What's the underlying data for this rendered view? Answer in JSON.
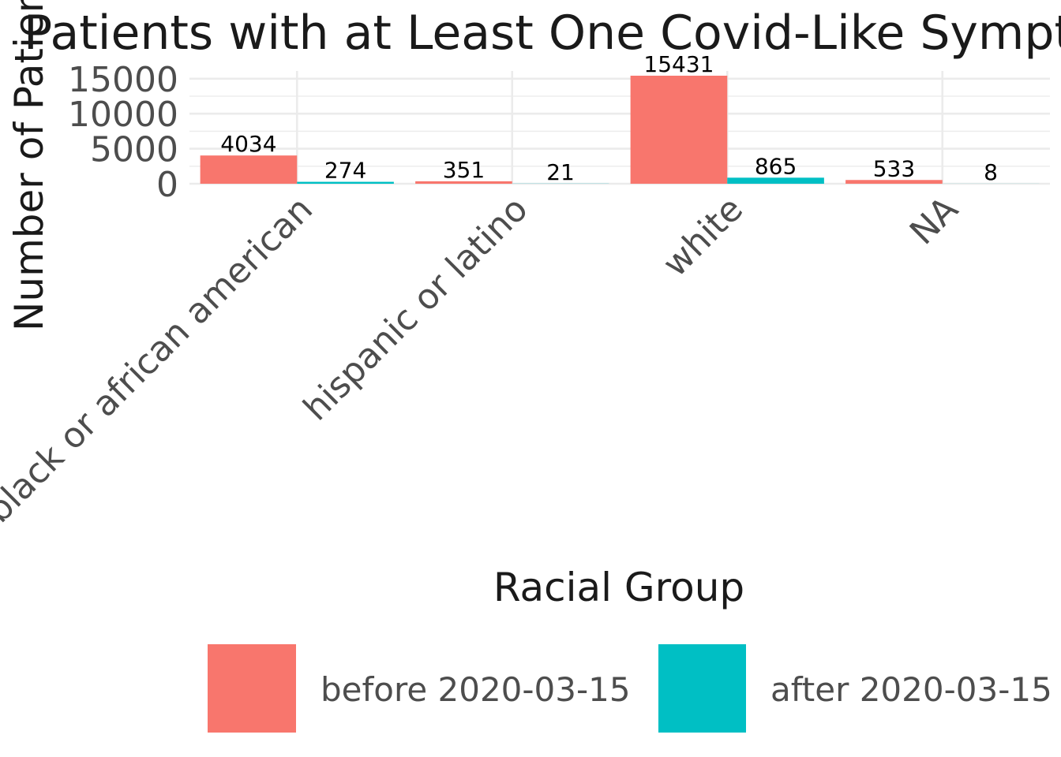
{
  "chart_data": {
    "type": "bar",
    "title": "Patients with at Least One Covid-Like Symptom",
    "xlabel": "Racial Group",
    "ylabel": "Number of Patients",
    "categories": [
      "black or african american",
      "hispanic or latino",
      "white",
      "NA"
    ],
    "series": [
      {
        "name": "before 2020-03-15",
        "color": "#F8766D",
        "values": [
          4034,
          351,
          15431,
          533
        ]
      },
      {
        "name": "after 2020-03-15",
        "color": "#00BFC4",
        "values": [
          274,
          21,
          865,
          8
        ]
      }
    ],
    "ylim": [
      0,
      15431
    ],
    "yticks": [
      0,
      5000,
      10000,
      15000
    ],
    "ytick_labels": [
      "0",
      "5000",
      "10000",
      "15000"
    ],
    "grid": true,
    "legend_position": "bottom"
  }
}
